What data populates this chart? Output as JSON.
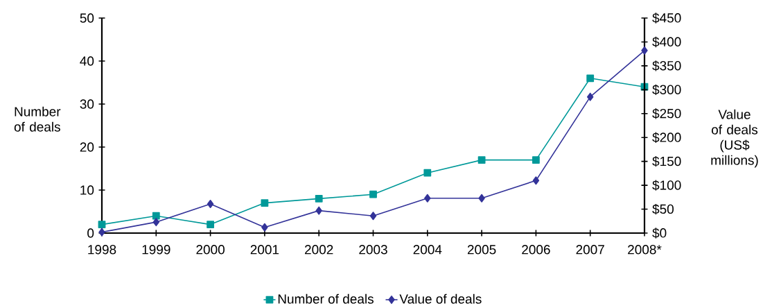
{
  "chart_data": {
    "type": "line",
    "categories": [
      "1998",
      "1999",
      "2000",
      "2001",
      "2002",
      "2003",
      "2004",
      "2005",
      "2006",
      "2007",
      "2008*"
    ],
    "series": [
      {
        "name": "Number of deals",
        "color": "#009999",
        "marker": "square",
        "values": [
          2,
          4,
          2,
          7,
          8,
          9,
          14,
          17,
          17,
          36,
          34
        ]
      },
      {
        "name": "Value of deals",
        "color": "#333399",
        "marker": "diamond",
        "axis": "y2",
        "values": [
          2,
          23,
          61,
          12,
          47,
          36,
          73,
          73,
          110,
          285,
          382
        ]
      }
    ],
    "ylabel": "Number of deals",
    "y2label": "Value of deals (US$ millions)",
    "ylim": [
      0,
      50
    ],
    "yticks": [
      0,
      10,
      20,
      30,
      40,
      50
    ],
    "y2lim": [
      0,
      450
    ],
    "y2ticks": [
      {
        "value": 0,
        "label": "$0"
      },
      {
        "value": 50,
        "label": "$50"
      },
      {
        "value": 100,
        "label": "$100"
      },
      {
        "value": 150,
        "label": "$150"
      },
      {
        "value": 200,
        "label": "$200"
      },
      {
        "value": 250,
        "label": "$250"
      },
      {
        "value": 300,
        "label": "$300"
      },
      {
        "value": 350,
        "label": "$350"
      },
      {
        "value": 400,
        "label": "$400"
      },
      {
        "value": 450,
        "label": "$450"
      }
    ],
    "grid": false,
    "legend": "bottom",
    "line_style": "solid"
  }
}
